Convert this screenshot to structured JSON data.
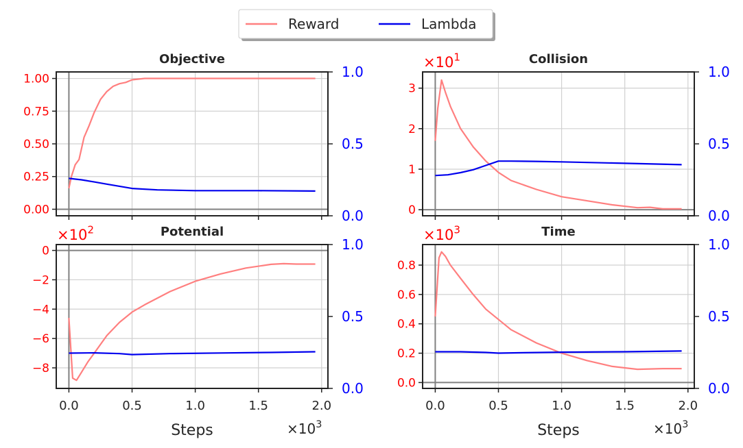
{
  "figure": {
    "xlabel": "Steps",
    "x_multiplier": "×10³",
    "colors": {
      "reward": "#ff7f7f",
      "lambda": "#0000ee",
      "left_tick": "#ff0000",
      "right_tick": "#0000ff"
    }
  },
  "legend": {
    "placement": "top-center",
    "items": [
      {
        "label": "Reward",
        "color": "#ff7f7f"
      },
      {
        "label": "Lambda",
        "color": "#0000ee"
      }
    ]
  },
  "chart_data": [
    {
      "type": "line",
      "title": "Objective",
      "xlabel": "",
      "ylabel": "",
      "y_multiplier": "",
      "xlim": [
        -0.1,
        2.05
      ],
      "ylim": [
        -0.05,
        1.05
      ],
      "ylim_right": [
        0.0,
        1.0
      ],
      "xticks": [
        "0.0",
        "0.5",
        "1.0",
        "1.5",
        "2.0"
      ],
      "yticks": [
        "0.00",
        "0.25",
        "0.50",
        "0.75",
        "1.00"
      ],
      "yticks_right": [
        "0.0",
        "0.5",
        "1.0"
      ],
      "grid": true,
      "series": [
        {
          "name": "Reward",
          "axis": "left",
          "x": [
            0.0,
            0.02,
            0.05,
            0.08,
            0.12,
            0.16,
            0.2,
            0.25,
            0.3,
            0.35,
            0.4,
            0.45,
            0.5,
            0.6,
            0.8,
            1.0,
            1.5,
            1.95
          ],
          "y": [
            0.16,
            0.25,
            0.34,
            0.38,
            0.55,
            0.64,
            0.74,
            0.84,
            0.9,
            0.94,
            0.96,
            0.97,
            0.99,
            1.0,
            1.0,
            1.0,
            1.0,
            1.0
          ]
        },
        {
          "name": "Lambda",
          "axis": "right",
          "x": [
            0.0,
            0.1,
            0.2,
            0.3,
            0.4,
            0.5,
            0.7,
            1.0,
            1.5,
            1.95
          ],
          "y": [
            0.26,
            0.25,
            0.235,
            0.22,
            0.205,
            0.19,
            0.18,
            0.175,
            0.175,
            0.172
          ]
        }
      ]
    },
    {
      "type": "line",
      "title": "Collision",
      "xlabel": "",
      "ylabel": "",
      "y_multiplier": "×10¹",
      "xlim": [
        -0.1,
        2.05
      ],
      "ylim": [
        -0.15,
        3.4
      ],
      "ylim_right": [
        0.0,
        1.0
      ],
      "xticks": [
        "0.0",
        "0.5",
        "1.0",
        "1.5",
        "2.0"
      ],
      "yticks": [
        "0",
        "1",
        "2",
        "3"
      ],
      "yticks_right": [
        "0.0",
        "0.5",
        "1.0"
      ],
      "grid": true,
      "series": [
        {
          "name": "Reward",
          "axis": "left",
          "x": [
            0.0,
            0.02,
            0.05,
            0.08,
            0.12,
            0.2,
            0.3,
            0.4,
            0.5,
            0.6,
            0.8,
            1.0,
            1.2,
            1.4,
            1.6,
            1.7,
            1.8,
            1.95
          ],
          "y": [
            1.7,
            2.5,
            3.2,
            2.9,
            2.55,
            2.0,
            1.55,
            1.2,
            0.92,
            0.72,
            0.5,
            0.32,
            0.22,
            0.12,
            0.05,
            0.06,
            0.02,
            0.02
          ]
        },
        {
          "name": "Lambda",
          "axis": "right",
          "x": [
            0.0,
            0.1,
            0.2,
            0.3,
            0.4,
            0.5,
            0.6,
            0.8,
            1.0,
            1.5,
            1.95
          ],
          "y": [
            0.28,
            0.285,
            0.3,
            0.32,
            0.35,
            0.38,
            0.38,
            0.378,
            0.375,
            0.365,
            0.355
          ]
        }
      ]
    },
    {
      "type": "line",
      "title": "Potential",
      "xlabel": "Steps",
      "ylabel": "",
      "y_multiplier": "×10²",
      "xlim": [
        -0.1,
        2.05
      ],
      "ylim": [
        -9.4,
        0.4
      ],
      "ylim_right": [
        0.0,
        1.0
      ],
      "xticks": [
        "0.0",
        "0.5",
        "1.0",
        "1.5",
        "2.0"
      ],
      "yticks": [
        "0",
        "−2",
        "−4",
        "−6",
        "−8"
      ],
      "yticks_right": [
        "0.0",
        "0.5",
        "1.0"
      ],
      "grid": true,
      "series": [
        {
          "name": "Reward",
          "axis": "left",
          "x": [
            0.0,
            0.03,
            0.06,
            0.1,
            0.15,
            0.2,
            0.3,
            0.4,
            0.5,
            0.6,
            0.8,
            1.0,
            1.2,
            1.4,
            1.6,
            1.7,
            1.8,
            1.95
          ],
          "y": [
            -4.6,
            -8.7,
            -8.85,
            -8.3,
            -7.6,
            -7.0,
            -5.8,
            -4.9,
            -4.2,
            -3.7,
            -2.8,
            -2.1,
            -1.6,
            -1.2,
            -0.95,
            -0.9,
            -0.93,
            -0.93
          ]
        },
        {
          "name": "Lambda",
          "axis": "right",
          "x": [
            0.0,
            0.2,
            0.4,
            0.5,
            0.8,
            1.2,
            1.6,
            1.95
          ],
          "y": [
            0.245,
            0.247,
            0.242,
            0.235,
            0.242,
            0.246,
            0.25,
            0.255
          ]
        }
      ]
    },
    {
      "type": "line",
      "title": "Time",
      "xlabel": "Steps",
      "ylabel": "",
      "y_multiplier": "×10³",
      "xlim": [
        -0.1,
        2.05
      ],
      "ylim": [
        -0.04,
        0.94
      ],
      "ylim_right": [
        0.0,
        1.0
      ],
      "xticks": [
        "0.0",
        "0.5",
        "1.0",
        "1.5",
        "2.0"
      ],
      "yticks": [
        "0.0",
        "0.2",
        "0.4",
        "0.6",
        "0.8"
      ],
      "yticks_right": [
        "0.0",
        "0.5",
        "1.0"
      ],
      "grid": true,
      "series": [
        {
          "name": "Reward",
          "axis": "left",
          "x": [
            0.0,
            0.03,
            0.05,
            0.08,
            0.12,
            0.2,
            0.3,
            0.4,
            0.5,
            0.6,
            0.8,
            1.0,
            1.2,
            1.4,
            1.6,
            1.8,
            1.95
          ],
          "y": [
            0.45,
            0.85,
            0.89,
            0.86,
            0.8,
            0.71,
            0.6,
            0.5,
            0.43,
            0.36,
            0.27,
            0.2,
            0.15,
            0.11,
            0.09,
            0.095,
            0.095
          ]
        },
        {
          "name": "Lambda",
          "axis": "right",
          "x": [
            0.0,
            0.2,
            0.4,
            0.5,
            0.7,
            1.0,
            1.5,
            1.95
          ],
          "y": [
            0.255,
            0.255,
            0.25,
            0.245,
            0.248,
            0.252,
            0.255,
            0.26
          ]
        }
      ]
    }
  ]
}
